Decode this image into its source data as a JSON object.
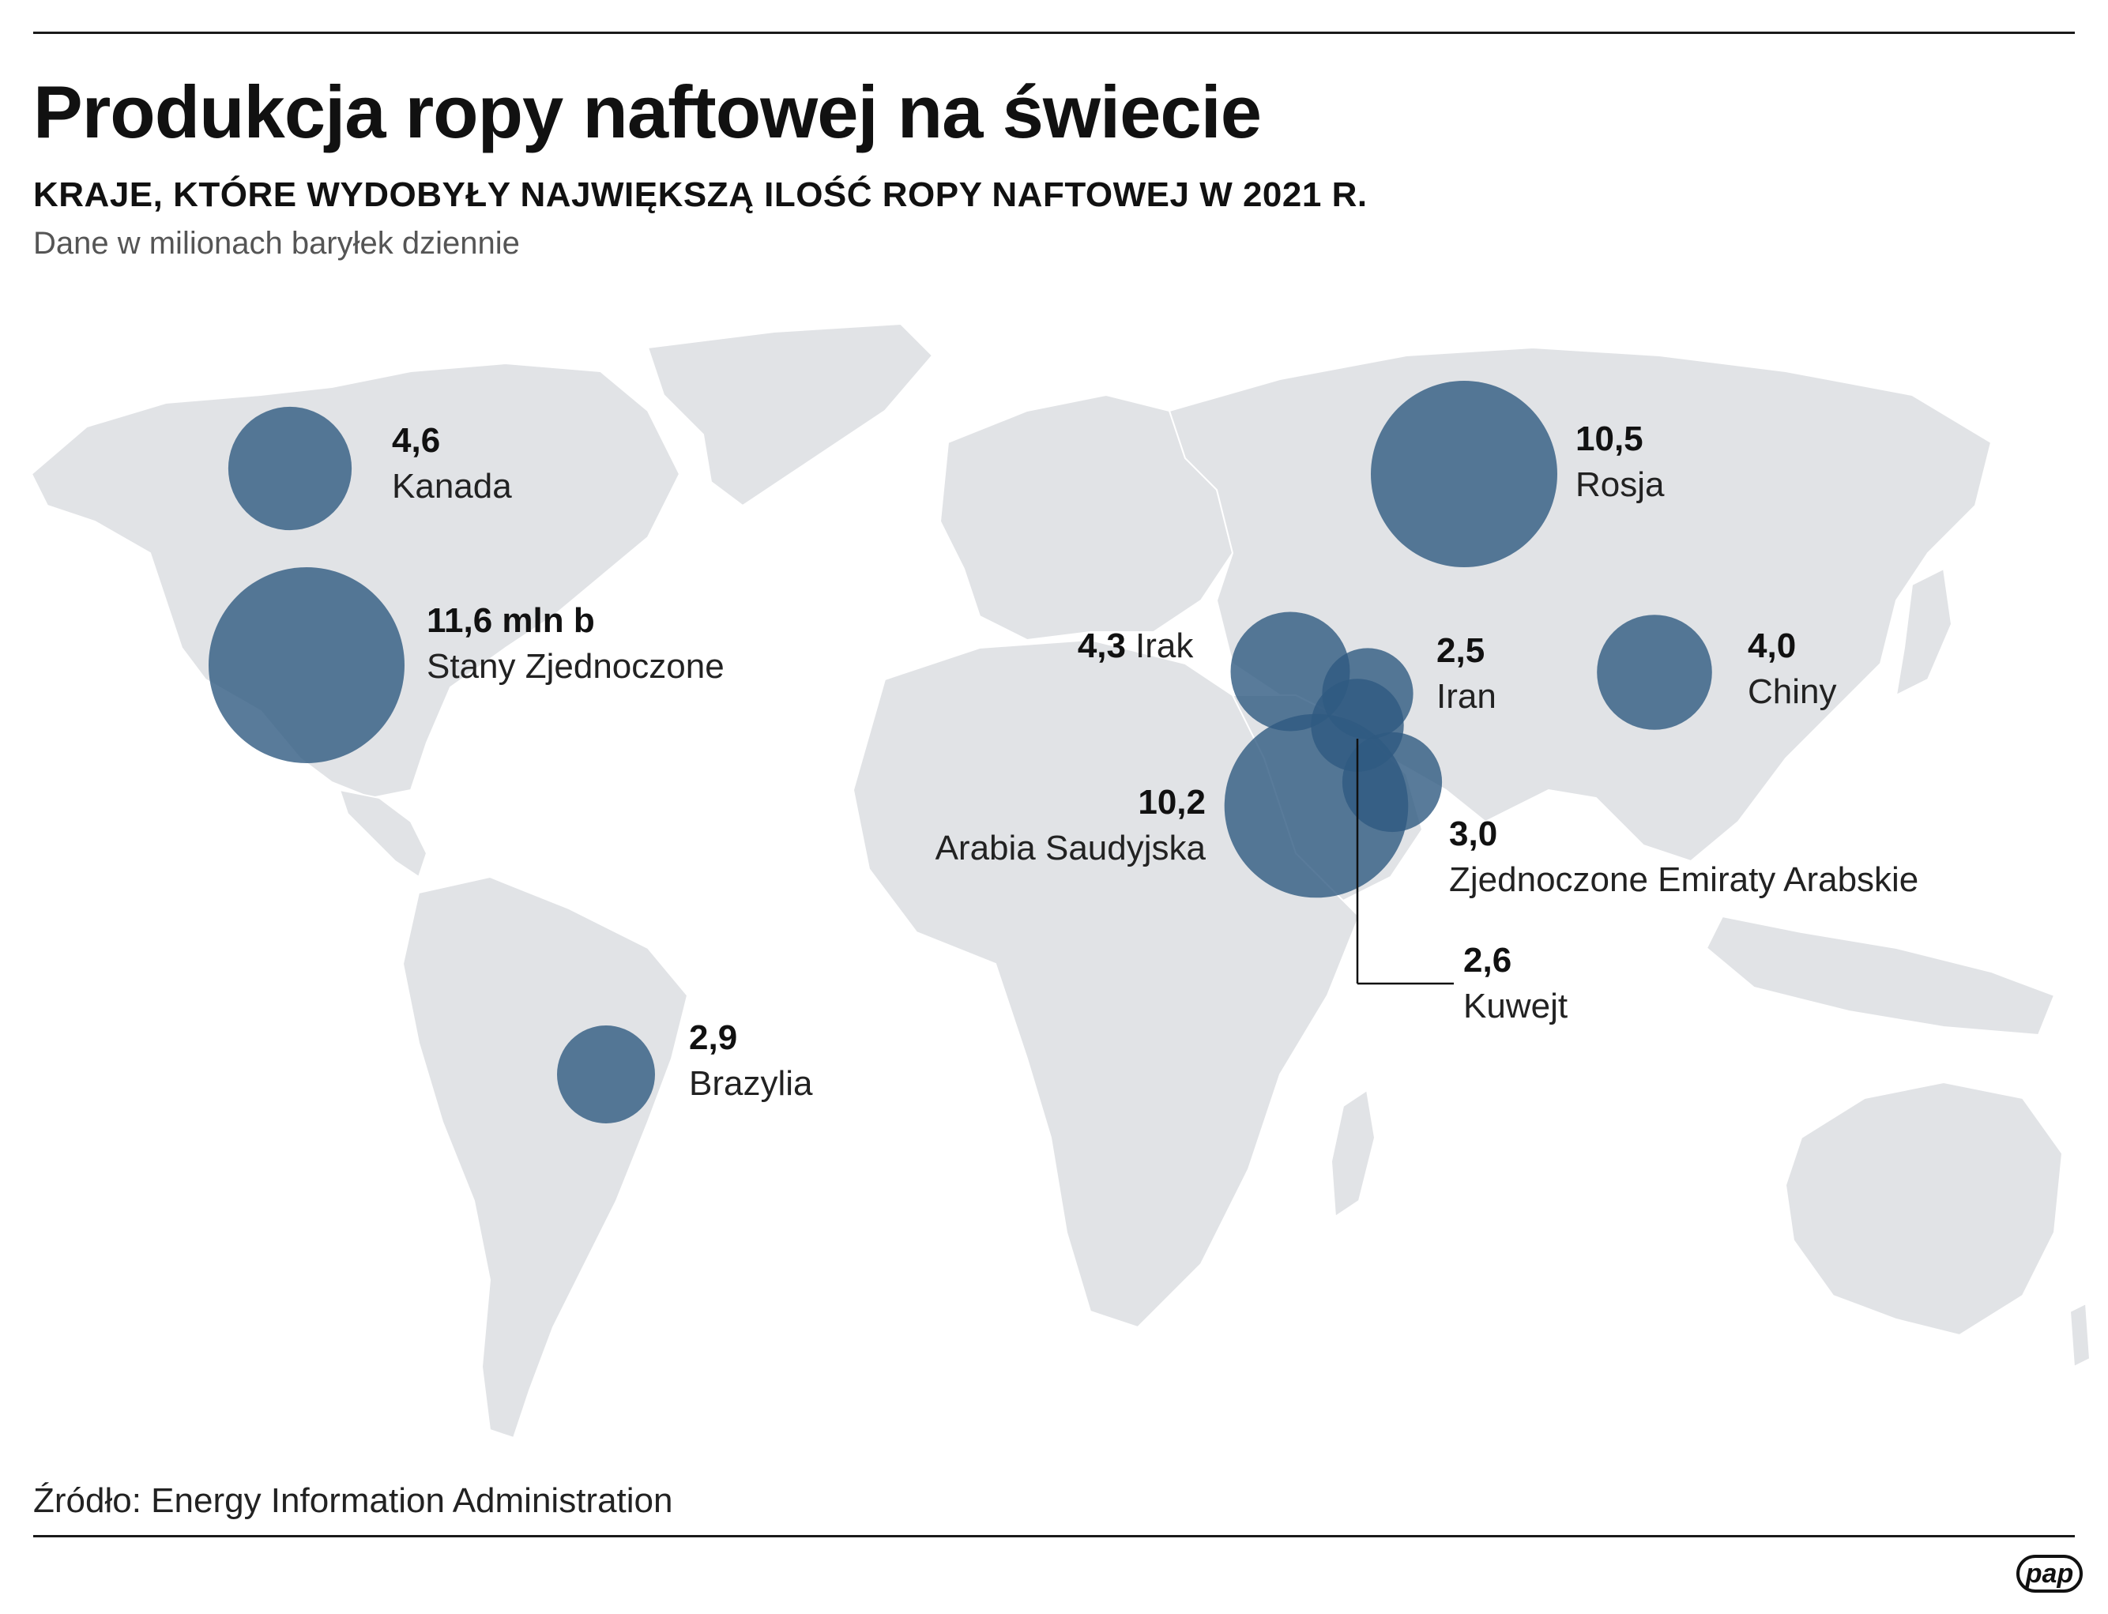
{
  "header": {
    "title": "Produkcja ropy naftowej na świecie",
    "subtitle": "KRAJE, KTÓRE WYDOBYŁY NAJWIĘKSZĄ ILOŚĆ ROPY NAFTOWEJ W 2021 R.",
    "unit_note": "Dane w milionach baryłek dziennie"
  },
  "footer": {
    "source": "Źródło: Energy Information Administration",
    "logo_text": "pap"
  },
  "colors": {
    "land": "#e1e3e6",
    "bubble": "#2f5a81",
    "text": "#111111"
  },
  "countries": [
    {
      "id": "usa",
      "name": "Stany Zjednoczone",
      "value": 11.6,
      "value_label": "11,6 mln b"
    },
    {
      "id": "russia",
      "name": "Rosja",
      "value": 10.5,
      "value_label": "10,5"
    },
    {
      "id": "saudi",
      "name": "Arabia Saudyjska",
      "value": 10.2,
      "value_label": "10,2"
    },
    {
      "id": "canada",
      "name": "Kanada",
      "value": 4.6,
      "value_label": "4,6"
    },
    {
      "id": "iraq",
      "name": "Irak",
      "value": 4.3,
      "value_label": "4,3"
    },
    {
      "id": "china",
      "name": "Chiny",
      "value": 4.0,
      "value_label": "4,0"
    },
    {
      "id": "uae",
      "name": "Zjednoczone Emiraty Arabskie",
      "value": 3.0,
      "value_label": "3,0"
    },
    {
      "id": "brazil",
      "name": "Brazylia",
      "value": 2.9,
      "value_label": "2,9"
    },
    {
      "id": "kuwait",
      "name": "Kuwejt",
      "value": 2.6,
      "value_label": "2,6"
    },
    {
      "id": "iran",
      "name": "Iran",
      "value": 2.5,
      "value_label": "2,5"
    }
  ]
}
